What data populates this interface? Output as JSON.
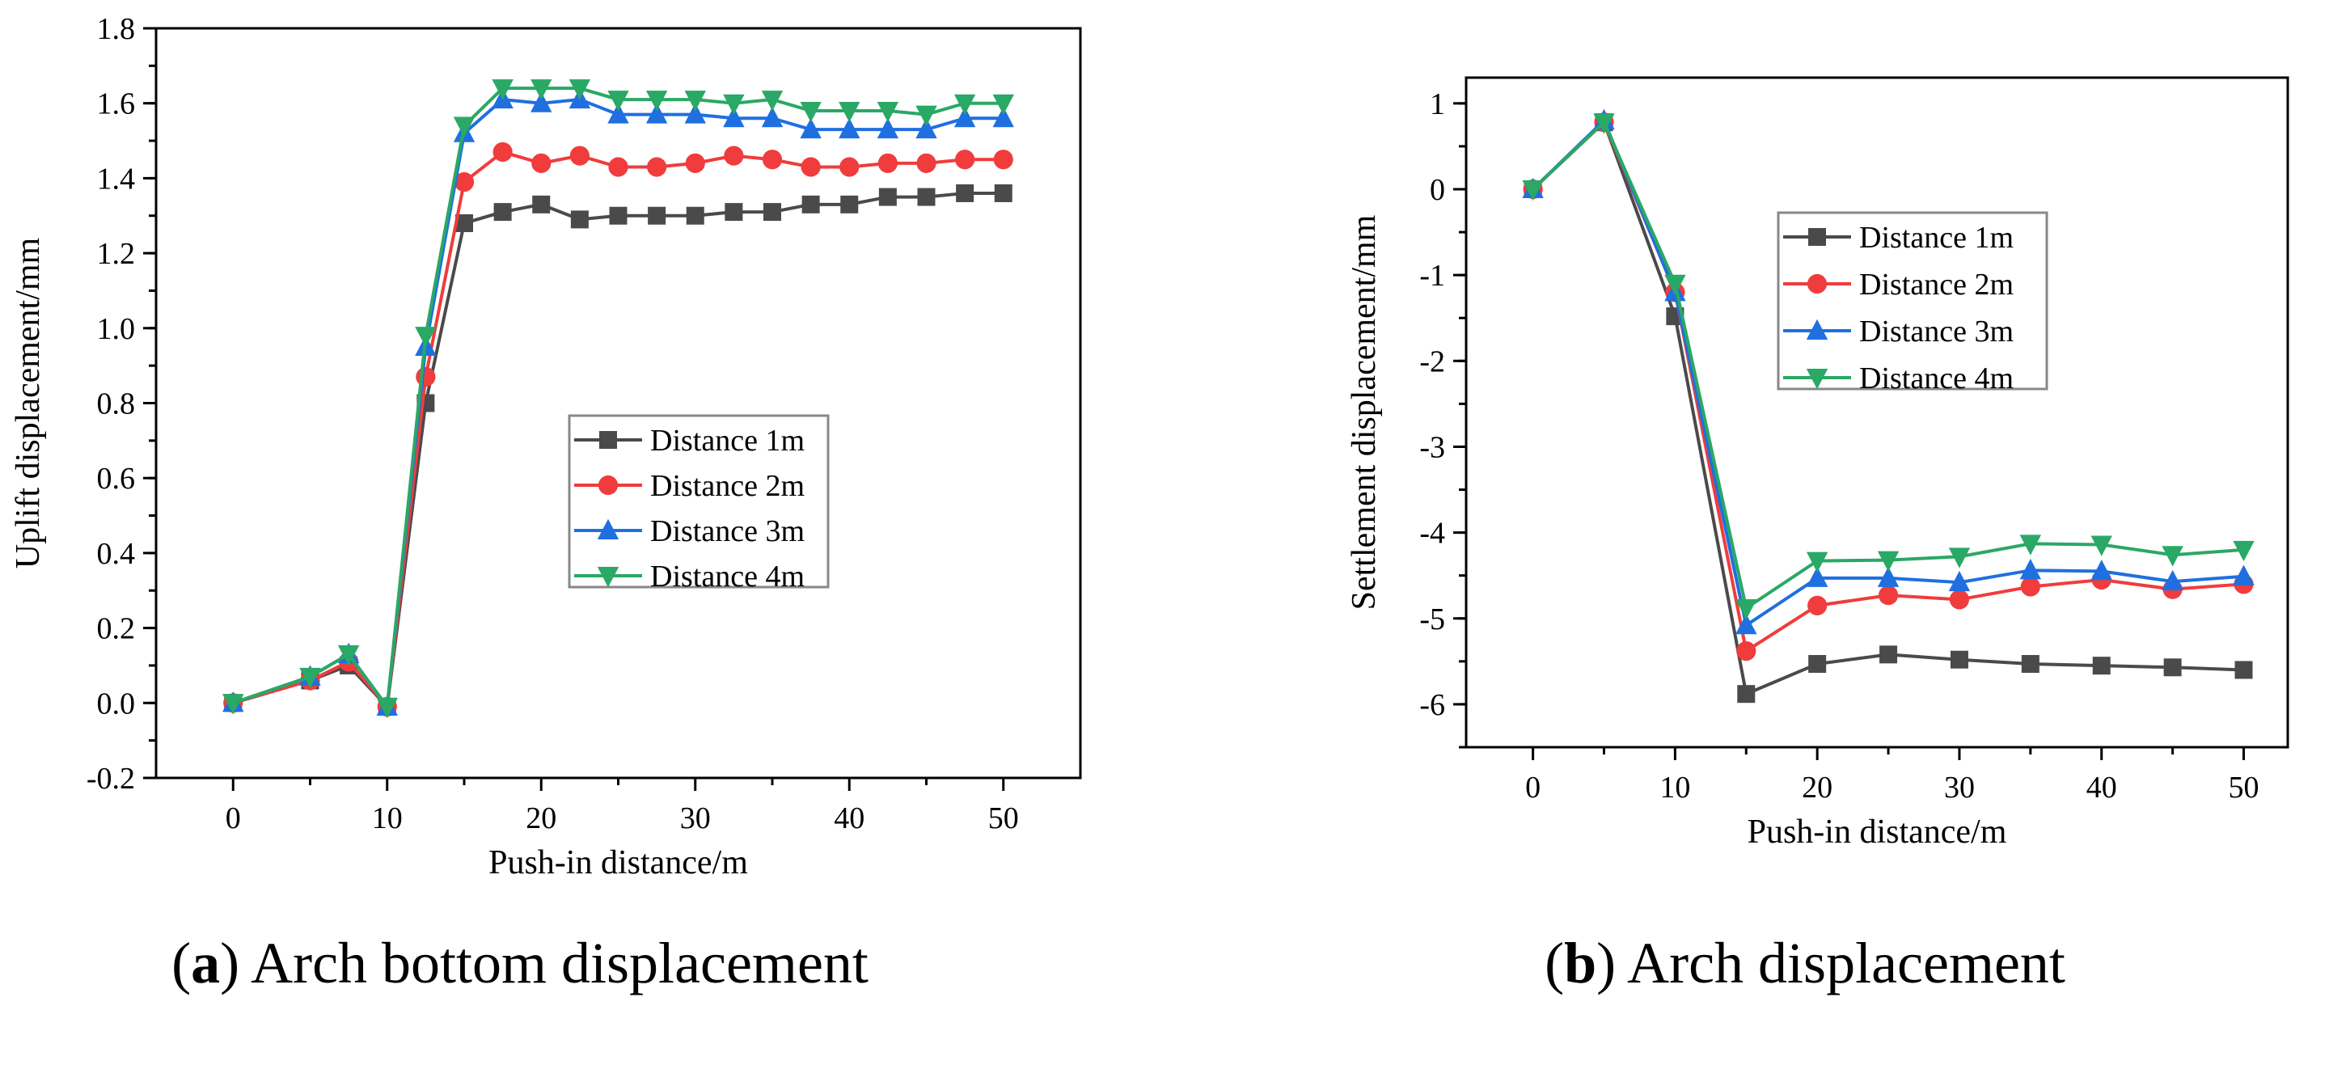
{
  "chart_data": [
    {
      "type": "line",
      "caption_letter": "a",
      "caption_text": "Arch bottom displacement",
      "xlabel": "Push-in distance/m",
      "ylabel": "Uplift displacement/mm",
      "xlim": [
        -5,
        55
      ],
      "ylim": [
        -0.2,
        1.8
      ],
      "xticks": [
        0,
        10,
        20,
        30,
        40,
        50
      ],
      "xtick_labels": [
        "0",
        "10",
        "20",
        "30",
        "40",
        "50"
      ],
      "yticks": [
        -0.2,
        0,
        0.2,
        0.4,
        0.6,
        0.8,
        1.0,
        1.2,
        1.4,
        1.6,
        1.8
      ],
      "ytick_labels": [
        "-0.2",
        "0.0",
        "0.2",
        "0.4",
        "0.6",
        "0.8",
        "1.0",
        "1.2",
        "1.4",
        "1.6",
        "1.8"
      ],
      "grid": false,
      "legend_position": "center-right",
      "x": [
        0,
        5,
        7.5,
        10,
        12.5,
        15,
        17.5,
        20,
        22.5,
        25,
        27.5,
        30,
        32.5,
        35,
        37.5,
        40,
        42.5,
        45,
        47.5,
        50
      ],
      "series": [
        {
          "name": "Distance 1m",
          "color": "#4a4a4a",
          "marker": "square",
          "values": [
            0,
            0.06,
            0.1,
            -0.01,
            0.8,
            1.28,
            1.31,
            1.33,
            1.29,
            1.3,
            1.3,
            1.3,
            1.31,
            1.31,
            1.33,
            1.33,
            1.35,
            1.35,
            1.36,
            1.36
          ]
        },
        {
          "name": "Distance 2m",
          "color": "#f03c3c",
          "marker": "circle",
          "values": [
            0,
            0.06,
            0.11,
            -0.01,
            0.87,
            1.39,
            1.47,
            1.44,
            1.46,
            1.43,
            1.43,
            1.44,
            1.46,
            1.45,
            1.43,
            1.43,
            1.44,
            1.44,
            1.45,
            1.45
          ]
        },
        {
          "name": "Distance 3m",
          "color": "#1f6fe0",
          "marker": "triangle-up",
          "values": [
            0,
            0.07,
            0.13,
            -0.01,
            0.95,
            1.52,
            1.61,
            1.6,
            1.61,
            1.57,
            1.57,
            1.57,
            1.56,
            1.56,
            1.53,
            1.53,
            1.53,
            1.53,
            1.56,
            1.56
          ]
        },
        {
          "name": "Distance 4m",
          "color": "#2aa865",
          "marker": "triangle-down",
          "values": [
            0,
            0.07,
            0.13,
            -0.01,
            0.98,
            1.54,
            1.64,
            1.64,
            1.64,
            1.61,
            1.61,
            1.61,
            1.6,
            1.61,
            1.58,
            1.58,
            1.58,
            1.57,
            1.6,
            1.6
          ]
        }
      ]
    },
    {
      "type": "line",
      "caption_letter": "b",
      "caption_text": "Arch displacement",
      "xlabel": "Push-in distance/m",
      "ylabel": "Settlement displacement/mm",
      "xlim": [
        -4.7,
        53.1
      ],
      "ylim": [
        -6.5,
        1.3
      ],
      "xticks": [
        0,
        10,
        20,
        30,
        40,
        50
      ],
      "xtick_labels": [
        "0",
        "10",
        "20",
        "30",
        "40",
        "50"
      ],
      "yticks": [
        -6,
        -5,
        -4,
        -3,
        -2,
        -1,
        0,
        1
      ],
      "ytick_labels": [
        "-6",
        "-5",
        "-4",
        "-3",
        "-2",
        "-1",
        "0",
        "1"
      ],
      "grid": false,
      "legend_position": "top-center",
      "x": [
        0,
        5,
        10,
        15,
        20,
        25,
        30,
        35,
        40,
        45,
        50
      ],
      "series": [
        {
          "name": "Distance 1m",
          "color": "#4a4a4a",
          "marker": "square",
          "values": [
            0,
            0.78,
            -1.48,
            -5.88,
            -5.53,
            -5.42,
            -5.48,
            -5.53,
            -5.55,
            -5.57,
            -5.6
          ]
        },
        {
          "name": "Distance 2m",
          "color": "#f03c3c",
          "marker": "circle",
          "values": [
            0,
            0.78,
            -1.2,
            -5.38,
            -4.85,
            -4.73,
            -4.78,
            -4.63,
            -4.55,
            -4.66,
            -4.6
          ]
        },
        {
          "name": "Distance 3m",
          "color": "#1f6fe0",
          "marker": "triangle-up",
          "values": [
            0,
            0.8,
            -1.2,
            -5.08,
            -4.53,
            -4.53,
            -4.58,
            -4.44,
            -4.45,
            -4.57,
            -4.51
          ]
        },
        {
          "name": "Distance 4m",
          "color": "#2aa865",
          "marker": "triangle-down",
          "values": [
            0,
            0.78,
            -1.1,
            -4.88,
            -4.33,
            -4.32,
            -4.28,
            -4.13,
            -4.14,
            -4.26,
            -4.2
          ]
        }
      ]
    }
  ]
}
